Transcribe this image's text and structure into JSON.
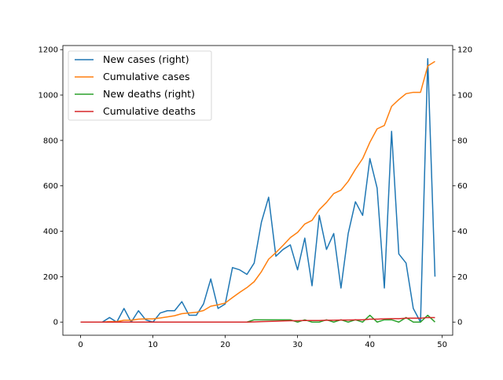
{
  "chart_data": {
    "type": "line",
    "x": [
      0,
      1,
      2,
      3,
      4,
      5,
      6,
      7,
      8,
      9,
      10,
      11,
      12,
      13,
      14,
      15,
      16,
      17,
      18,
      19,
      20,
      21,
      22,
      23,
      24,
      25,
      26,
      27,
      28,
      29,
      30,
      31,
      32,
      33,
      34,
      35,
      36,
      37,
      38,
      39,
      40,
      41,
      42,
      43,
      44,
      45,
      46,
      47,
      48,
      49
    ],
    "xlim": [
      -2.45,
      51.45
    ],
    "ylim_left": [
      -58,
      1218
    ],
    "ylim_right": [
      -5.8,
      121.8
    ],
    "xticks": [
      0,
      10,
      20,
      30,
      40,
      50
    ],
    "yticks_left": [
      0,
      200,
      400,
      600,
      800,
      1000,
      1200
    ],
    "yticks_right": [
      0,
      20,
      40,
      60,
      80,
      100,
      120
    ],
    "grid": false,
    "legend_position": "top-left",
    "series": [
      {
        "name": "New cases (right)",
        "axis": "right",
        "color": "#1f77b4",
        "values": [
          0,
          0,
          0,
          0,
          2,
          0,
          6,
          0,
          5,
          1,
          0,
          4,
          5,
          5,
          9,
          3,
          3,
          8,
          19,
          6,
          8,
          24,
          23,
          21,
          26,
          44,
          55,
          29,
          32,
          34,
          23,
          37,
          16,
          47,
          32,
          39,
          15,
          39,
          53,
          47,
          72,
          59,
          15,
          84,
          30,
          26,
          6,
          0,
          116,
          20
        ]
      },
      {
        "name": "Cumulative cases",
        "axis": "left",
        "color": "#ff7f0e",
        "values": [
          0,
          0,
          0,
          0,
          2,
          2,
          8,
          8,
          13,
          14,
          14,
          18,
          23,
          28,
          37,
          40,
          43,
          51,
          70,
          76,
          84,
          108,
          131,
          152,
          178,
          222,
          277,
          306,
          338,
          372,
          395,
          432,
          448,
          495,
          527,
          566,
          581,
          620,
          673,
          720,
          792,
          851,
          866,
          950,
          980,
          1006,
          1012,
          1012,
          1128,
          1148
        ]
      },
      {
        "name": "New deaths (right)",
        "axis": "right",
        "color": "#2ca02c",
        "values": [
          0,
          0,
          0,
          0,
          0,
          0,
          0,
          0,
          0,
          0,
          0,
          0,
          0,
          0,
          0,
          0,
          0,
          0,
          0,
          0,
          0,
          0,
          0,
          0,
          1,
          1,
          1,
          1,
          1,
          1,
          0,
          1,
          0,
          0,
          1,
          0,
          1,
          0,
          1,
          0,
          3,
          0,
          1,
          1,
          0,
          2,
          0,
          0,
          3,
          0
        ]
      },
      {
        "name": "Cumulative deaths",
        "axis": "right",
        "color": "#d62728",
        "values": [
          0,
          0,
          0,
          0,
          0,
          0,
          0,
          0,
          0,
          0,
          0,
          0,
          0,
          0,
          0,
          0,
          0,
          0,
          0,
          0,
          0,
          0,
          0,
          0,
          0.1,
          0.2,
          0.3,
          0.4,
          0.5,
          0.6,
          0.6,
          0.7,
          0.7,
          0.7,
          0.8,
          0.8,
          0.9,
          0.9,
          1.0,
          1.0,
          1.3,
          1.3,
          1.4,
          1.5,
          1.5,
          1.7,
          1.7,
          1.7,
          2.0,
          2.0
        ]
      }
    ]
  }
}
